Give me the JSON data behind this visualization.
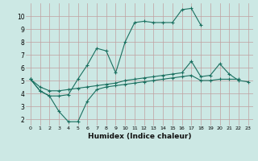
{
  "xlabel": "Humidex (Indice chaleur)",
  "bg_color": "#cce8e4",
  "grid_color": "#c0a0a0",
  "line_color": "#1a7060",
  "line1_x": [
    0,
    1,
    2,
    3,
    4,
    5,
    6,
    7,
    8,
    9,
    10,
    11,
    12,
    13,
    14,
    15,
    16,
    17,
    18
  ],
  "line1_y": [
    5.1,
    4.2,
    3.8,
    3.8,
    3.9,
    5.1,
    6.2,
    7.5,
    7.3,
    5.6,
    8.0,
    9.5,
    9.6,
    9.5,
    9.5,
    9.5,
    10.5,
    10.6,
    9.3
  ],
  "line2_x": [
    0,
    1,
    2,
    3,
    4,
    5,
    6,
    7,
    8,
    9,
    10,
    11,
    12,
    13,
    14,
    15,
    16,
    17,
    18,
    19,
    20,
    21,
    22,
    23
  ],
  "line2_y": [
    5.1,
    4.5,
    4.2,
    4.2,
    4.3,
    4.4,
    4.5,
    4.6,
    4.7,
    4.8,
    5.0,
    5.1,
    5.2,
    5.3,
    5.4,
    5.5,
    5.6,
    6.5,
    5.3,
    5.4,
    6.3,
    5.5,
    5.0,
    4.9
  ],
  "line3_x": [
    0,
    1,
    2,
    3,
    4,
    5,
    6,
    7,
    8,
    9,
    10,
    11,
    12,
    13,
    14,
    15,
    16,
    17,
    18,
    19,
    20,
    21,
    22,
    23
  ],
  "line3_y": [
    5.1,
    4.2,
    3.8,
    2.6,
    1.8,
    1.8,
    3.4,
    4.3,
    4.5,
    4.6,
    4.7,
    4.8,
    4.9,
    5.0,
    5.1,
    5.2,
    5.3,
    5.4,
    5.0,
    5.0,
    5.1,
    5.1,
    5.1,
    null
  ],
  "xlim": [
    -0.5,
    23.5
  ],
  "ylim": [
    1.5,
    11.0
  ],
  "yticks": [
    2,
    3,
    4,
    5,
    6,
    7,
    8,
    9,
    10
  ],
  "xticks": [
    0,
    1,
    2,
    3,
    4,
    5,
    6,
    7,
    8,
    9,
    10,
    11,
    12,
    13,
    14,
    15,
    16,
    17,
    18,
    19,
    20,
    21,
    22,
    23
  ]
}
